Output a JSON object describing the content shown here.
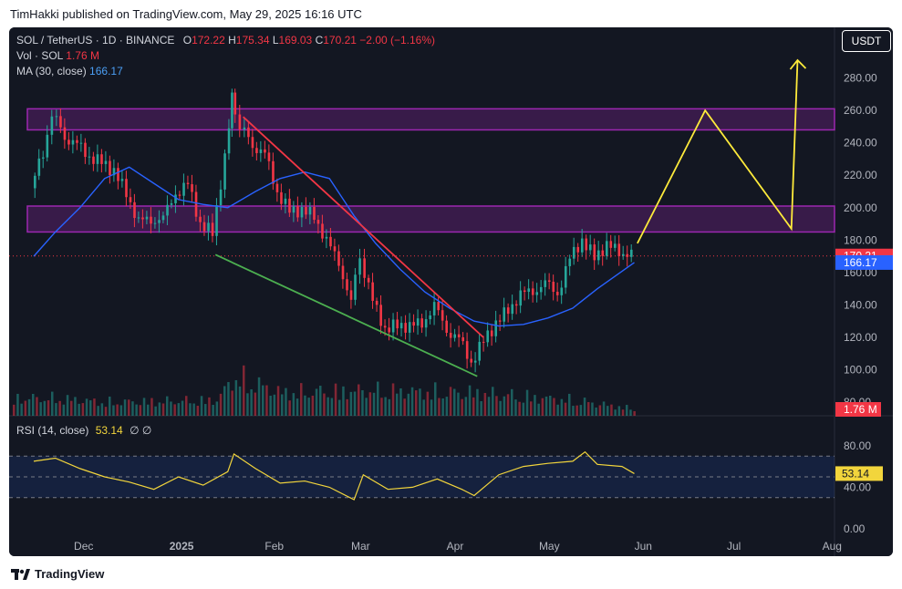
{
  "header": {
    "title": "TimHakki published on TradingView.com, May 29, 2025 16:16 UTC"
  },
  "legend": {
    "symbol": "SOL / TetherUS · 1D · BINANCE",
    "o_label": "O",
    "o": "172.22",
    "h_label": "H",
    "h": "175.34",
    "l_label": "L",
    "l": "169.03",
    "c_label": "C",
    "c": "170.21",
    "change": "−2.00 (−1.16%)",
    "vol_label": "Vol · SOL",
    "vol": "1.76 M",
    "ma_label": "MA (30, close)",
    "ma": "166.17"
  },
  "rsi": {
    "label": "RSI (14, close)",
    "value": "53.14",
    "extra": "∅  ∅"
  },
  "currency_button": "USDT",
  "footer": {
    "brand": "TradingView"
  },
  "colors": {
    "bg": "#131722",
    "up": "#26a69a",
    "down": "#f23645",
    "ma": "#2962ff",
    "rsi": "#f2d53c",
    "zone": "#9c27b0",
    "projection": "#ffeb3b",
    "upper_trend": "#f23645",
    "lower_trend": "#4caf50"
  },
  "chart_data": [
    {
      "type": "candlestick",
      "title": "SOL / TetherUS · 1D · BINANCE",
      "x": [
        "Dec",
        "2025",
        "Feb",
        "Mar",
        "Apr",
        "May",
        "Jun",
        "Jul",
        "Aug"
      ],
      "price_axis": [
        "280.00",
        "260.00",
        "240.00",
        "220.00",
        "200.00",
        "180.00",
        "160.00",
        "140.00",
        "120.00",
        "100.00",
        "80.00"
      ],
      "ylim": [
        75,
        300
      ],
      "last_price": "170.21",
      "ma_value": "166.17",
      "volume_value": "1.76 M",
      "closes": [
        {
          "date": "2024-11-15",
          "close": 212
        },
        {
          "date": "2024-11-19",
          "close": 235
        },
        {
          "date": "2024-11-22",
          "close": 258
        },
        {
          "date": "2024-11-26",
          "close": 245
        },
        {
          "date": "2024-11-30",
          "close": 238
        },
        {
          "date": "2024-12-04",
          "close": 232
        },
        {
          "date": "2024-12-08",
          "close": 228
        },
        {
          "date": "2024-12-12",
          "close": 222
        },
        {
          "date": "2024-12-16",
          "close": 210
        },
        {
          "date": "2024-12-20",
          "close": 190
        },
        {
          "date": "2024-12-24",
          "close": 194
        },
        {
          "date": "2024-12-28",
          "close": 192
        },
        {
          "date": "2025-01-01",
          "close": 210
        },
        {
          "date": "2025-01-05",
          "close": 214
        },
        {
          "date": "2025-01-09",
          "close": 190
        },
        {
          "date": "2025-01-13",
          "close": 185
        },
        {
          "date": "2025-01-17",
          "close": 230
        },
        {
          "date": "2025-01-19",
          "close": 268
        },
        {
          "date": "2025-01-22",
          "close": 250
        },
        {
          "date": "2025-01-26",
          "close": 240
        },
        {
          "date": "2025-01-30",
          "close": 232
        },
        {
          "date": "2025-02-03",
          "close": 210
        },
        {
          "date": "2025-02-07",
          "close": 198
        },
        {
          "date": "2025-02-11",
          "close": 198
        },
        {
          "date": "2025-02-15",
          "close": 196
        },
        {
          "date": "2025-02-19",
          "close": 178
        },
        {
          "date": "2025-02-23",
          "close": 168
        },
        {
          "date": "2025-02-27",
          "close": 140
        },
        {
          "date": "2025-03-02",
          "close": 170
        },
        {
          "date": "2025-03-06",
          "close": 142
        },
        {
          "date": "2025-03-10",
          "close": 125
        },
        {
          "date": "2025-03-14",
          "close": 128
        },
        {
          "date": "2025-03-18",
          "close": 126
        },
        {
          "date": "2025-03-22",
          "close": 130
        },
        {
          "date": "2025-03-26",
          "close": 138
        },
        {
          "date": "2025-03-30",
          "close": 126
        },
        {
          "date": "2025-04-03",
          "close": 118
        },
        {
          "date": "2025-04-07",
          "close": 105
        },
        {
          "date": "2025-04-11",
          "close": 118
        },
        {
          "date": "2025-04-15",
          "close": 128
        },
        {
          "date": "2025-04-19",
          "close": 138
        },
        {
          "date": "2025-04-23",
          "close": 145
        },
        {
          "date": "2025-04-27",
          "close": 150
        },
        {
          "date": "2025-05-01",
          "close": 152
        },
        {
          "date": "2025-05-05",
          "close": 148
        },
        {
          "date": "2025-05-09",
          "close": 168
        },
        {
          "date": "2025-05-13",
          "close": 180
        },
        {
          "date": "2025-05-17",
          "close": 170
        },
        {
          "date": "2025-05-21",
          "close": 176
        },
        {
          "date": "2025-05-25",
          "close": 174
        },
        {
          "date": "2025-05-29",
          "close": 170.21
        }
      ],
      "ma_line": [
        {
          "date": "2024-11-15",
          "value": 170
        },
        {
          "date": "2024-11-22",
          "value": 185
        },
        {
          "date": "2024-11-30",
          "value": 200
        },
        {
          "date": "2024-12-08",
          "value": 218
        },
        {
          "date": "2024-12-16",
          "value": 225
        },
        {
          "date": "2024-12-24",
          "value": 215
        },
        {
          "date": "2025-01-01",
          "value": 205
        },
        {
          "date": "2025-01-09",
          "value": 202
        },
        {
          "date": "2025-01-17",
          "value": 200
        },
        {
          "date": "2025-01-26",
          "value": 210
        },
        {
          "date": "2025-02-03",
          "value": 218
        },
        {
          "date": "2025-02-11",
          "value": 222
        },
        {
          "date": "2025-02-19",
          "value": 218
        },
        {
          "date": "2025-02-27",
          "value": 195
        },
        {
          "date": "2025-03-06",
          "value": 178
        },
        {
          "date": "2025-03-14",
          "value": 162
        },
        {
          "date": "2025-03-22",
          "value": 148
        },
        {
          "date": "2025-03-30",
          "value": 138
        },
        {
          "date": "2025-04-07",
          "value": 130
        },
        {
          "date": "2025-04-15",
          "value": 127
        },
        {
          "date": "2025-04-23",
          "value": 128
        },
        {
          "date": "2025-05-01",
          "value": 132
        },
        {
          "date": "2025-05-09",
          "value": 138
        },
        {
          "date": "2025-05-17",
          "value": 150
        },
        {
          "date": "2025-05-29",
          "value": 166.17
        }
      ],
      "zones": [
        {
          "from": 248,
          "to": 261
        },
        {
          "from": 185,
          "to": 201
        }
      ],
      "trendlines": [
        {
          "kind": "upper",
          "start": {
            "date": "2025-01-22",
            "value": 256
          },
          "end": {
            "date": "2025-04-10",
            "value": 120
          }
        },
        {
          "kind": "lower",
          "start": {
            "date": "2025-01-13",
            "value": 171
          },
          "end": {
            "date": "2025-04-08",
            "value": 96
          }
        }
      ],
      "projection": [
        {
          "date": "2025-05-30",
          "value": 178
        },
        {
          "date": "2025-06-21",
          "value": 260
        },
        {
          "date": "2025-07-19",
          "value": 187
        },
        {
          "date": "2025-07-21",
          "value": 291
        }
      ],
      "volume": [
        {
          "date": "2024-11-22",
          "value": 0.9
        },
        {
          "date": "2024-12-08",
          "value": 0.7
        },
        {
          "date": "2025-01-13",
          "value": 0.8
        },
        {
          "date": "2025-01-19",
          "value": 2.0
        },
        {
          "date": "2025-02-03",
          "value": 1.2
        },
        {
          "date": "2025-03-02",
          "value": 1.3
        },
        {
          "date": "2025-04-07",
          "value": 1.2
        },
        {
          "date": "2025-05-09",
          "value": 0.8
        },
        {
          "date": "2025-05-29",
          "value": 0.35
        }
      ]
    },
    {
      "type": "line",
      "title": "RSI (14, close)",
      "ylabels": [
        "80.00",
        "40.00",
        "0.00"
      ],
      "ylim": [
        0,
        100
      ],
      "bands": [
        70,
        50,
        30
      ],
      "current": "53.14",
      "series": [
        {
          "values": [
            {
              "date": "2024-11-15",
              "value": 65
            },
            {
              "date": "2024-11-22",
              "value": 68
            },
            {
              "date": "2024-11-30",
              "value": 58
            },
            {
              "date": "2024-12-08",
              "value": 50
            },
            {
              "date": "2024-12-16",
              "value": 45
            },
            {
              "date": "2024-12-24",
              "value": 38
            },
            {
              "date": "2025-01-01",
              "value": 50
            },
            {
              "date": "2025-01-09",
              "value": 42
            },
            {
              "date": "2025-01-17",
              "value": 55
            },
            {
              "date": "2025-01-19",
              "value": 72
            },
            {
              "date": "2025-01-26",
              "value": 58
            },
            {
              "date": "2025-02-03",
              "value": 44
            },
            {
              "date": "2025-02-11",
              "value": 46
            },
            {
              "date": "2025-02-19",
              "value": 40
            },
            {
              "date": "2025-02-27",
              "value": 28
            },
            {
              "date": "2025-03-02",
              "value": 52
            },
            {
              "date": "2025-03-10",
              "value": 38
            },
            {
              "date": "2025-03-18",
              "value": 40
            },
            {
              "date": "2025-03-26",
              "value": 48
            },
            {
              "date": "2025-04-03",
              "value": 38
            },
            {
              "date": "2025-04-07",
              "value": 32
            },
            {
              "date": "2025-04-15",
              "value": 52
            },
            {
              "date": "2025-04-23",
              "value": 60
            },
            {
              "date": "2025-05-01",
              "value": 63
            },
            {
              "date": "2025-05-09",
              "value": 65
            },
            {
              "date": "2025-05-13",
              "value": 74
            },
            {
              "date": "2025-05-17",
              "value": 62
            },
            {
              "date": "2025-05-25",
              "value": 60
            },
            {
              "date": "2025-05-29",
              "value": 53.14
            }
          ]
        }
      ]
    }
  ]
}
